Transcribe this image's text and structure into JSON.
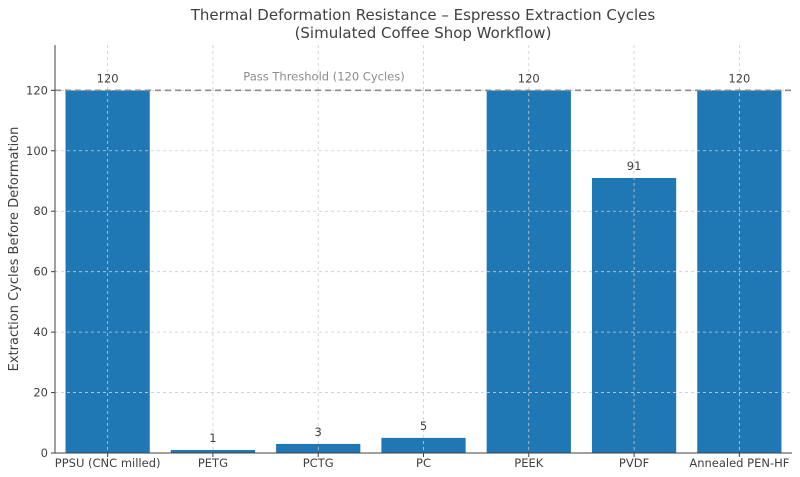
{
  "chart_data": {
    "type": "bar",
    "title_line1": "Thermal Deformation Resistance – Espresso Extraction Cycles",
    "title_line2": "(Simulated Coffee Shop Workflow)",
    "xlabel": "",
    "ylabel": "Extraction Cycles Before Deformation",
    "categories": [
      "PPSU (CNC milled)",
      "PETG",
      "PCTG",
      "PC",
      "PEEK",
      "PVDF",
      "Annealed PEN-HF"
    ],
    "values": [
      120,
      1,
      3,
      5,
      120,
      91,
      120
    ],
    "ylim": [
      0,
      135
    ],
    "yticks": [
      0,
      20,
      40,
      60,
      80,
      100,
      120
    ],
    "threshold": {
      "value": 120,
      "label": "Pass Threshold (120 Cycles)"
    },
    "grid": true,
    "bar_color": "#1f77b4"
  }
}
